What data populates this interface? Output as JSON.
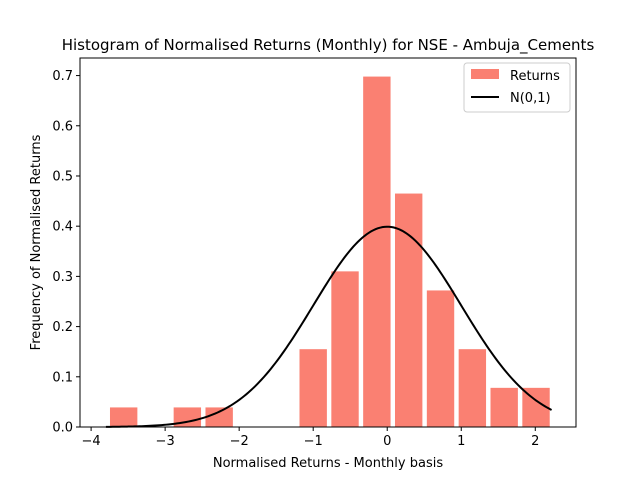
{
  "chart_data": {
    "type": "bar",
    "title": "Histogram of Normalised Returns (Monthly) for NSE - Ambuja_Cements",
    "xlabel": "Normalised Returns - Monthly basis",
    "ylabel": "Frequency of Normalised Returns",
    "xlim": [
      -4.15,
      2.55
    ],
    "ylim": [
      0,
      0.735
    ],
    "xticks": [
      -4,
      -3,
      -2,
      -1,
      0,
      1,
      2
    ],
    "yticks": [
      0.0,
      0.1,
      0.2,
      0.3,
      0.4,
      0.5,
      0.6,
      0.7
    ],
    "grid": false,
    "legend_position": "top-right",
    "bar_color": "#fa8072",
    "line_color": "#000000",
    "series": [
      {
        "name": "Returns",
        "kind": "bar",
        "bin_width": 0.43,
        "bar_width": 0.37,
        "x": [
          -3.56,
          -2.7,
          -2.27,
          -1.0,
          -0.57,
          -0.14,
          0.29,
          0.72,
          1.15,
          1.58,
          2.01
        ],
        "values": [
          0.039,
          0.039,
          0.039,
          0.155,
          0.31,
          0.698,
          0.465,
          0.272,
          0.155,
          0.078,
          0.078
        ]
      },
      {
        "name": "N(0,1)",
        "kind": "line",
        "x_range": [
          -3.8,
          2.22
        ],
        "function": "standard_normal_pdf"
      }
    ]
  }
}
